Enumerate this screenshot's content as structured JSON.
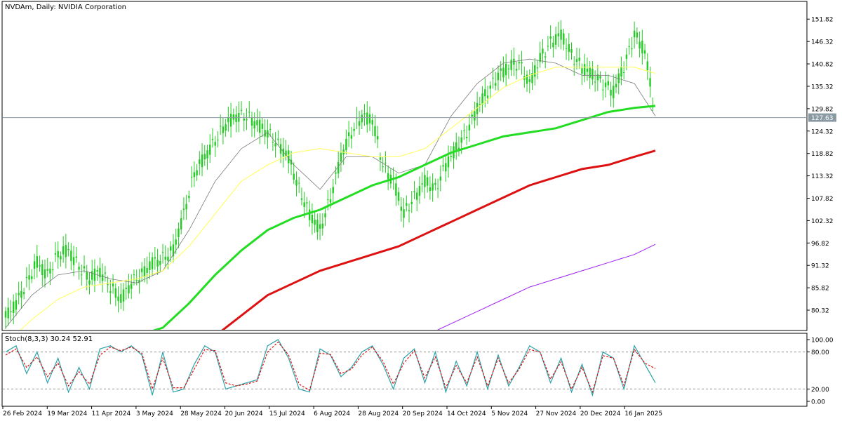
{
  "header": {
    "title": "NVDAm, Daily:  NVIDIA Corporation"
  },
  "colors": {
    "background": "#ffffff",
    "candle": "#22cc22",
    "ma_fast": "#7a7a7a",
    "ma_medium": "#ffff55",
    "ma_slow": "#22dd22",
    "ma_red": "#dd1111",
    "ma_purple": "#a020f0",
    "price_line": "#8a9aa3",
    "stoch_main": "#2aa2a8",
    "stoch_signal": "#dd1111",
    "price_badge_bg": "#8a9aa3",
    "price_badge_text": "#ffffff"
  },
  "chart_data": {
    "type": "line",
    "title": "NVDAm, Daily:  NVIDIA Corporation",
    "price_axis": {
      "min": 75.5,
      "max": 156.0,
      "ticks": [
        151.82,
        146.32,
        140.82,
        135.32,
        129.82,
        124.32,
        118.82,
        113.32,
        107.82,
        102.32,
        96.82,
        91.32,
        85.82,
        80.32
      ]
    },
    "current_price": 127.63,
    "current_price_label": "127.63",
    "dates": [
      "26 Feb 2024",
      "19 Mar 2024",
      "11 Apr 2024",
      "3 May 2024",
      "28 May 2024",
      "20 Jun 2024",
      "15 Jul 2024",
      "6 Aug 2024",
      "28 Aug 2024",
      "20 Sep 2024",
      "14 Oct 2024",
      "5 Nov 2024",
      "27 Nov 2024",
      "20 Dec 2024",
      "16 Jan 2025"
    ],
    "grid": false,
    "price_series": [
      {
        "name": "close",
        "x": [
          0,
          4,
          8,
          12,
          16,
          20,
          24,
          28,
          32,
          36,
          40,
          44,
          48,
          52,
          56,
          60,
          64,
          68,
          72,
          76,
          80,
          84,
          88,
          92,
          96,
          100,
          104,
          108,
          112,
          116,
          120,
          124,
          128,
          132,
          136,
          140,
          144,
          148,
          152,
          156,
          160,
          164,
          168,
          172,
          176,
          180,
          184,
          188,
          192,
          196,
          200,
          204,
          208,
          212,
          216,
          220,
          224,
          228,
          232,
          236,
          240,
          244,
          248
        ],
        "y": [
          78.5,
          82,
          87,
          92,
          89,
          94,
          95,
          91,
          88,
          90,
          86,
          83,
          87,
          89,
          92,
          93,
          95,
          104,
          114,
          118,
          122,
          126,
          128,
          128,
          126,
          124,
          121,
          118,
          110,
          104,
          100,
          108,
          118,
          124,
          128,
          127,
          116,
          112,
          104,
          108,
          112,
          110,
          116,
          120,
          124,
          130,
          134,
          138,
          140,
          141,
          136,
          142,
          146,
          148,
          143,
          140,
          138,
          136,
          134,
          140,
          148,
          144,
          127.63
        ]
      },
      {
        "name": "ma_fast",
        "x": [
          0,
          10,
          20,
          30,
          40,
          50,
          60,
          70,
          80,
          90,
          100,
          110,
          120,
          130,
          140,
          150,
          160,
          170,
          180,
          190,
          200,
          210,
          220,
          230,
          240,
          248
        ],
        "y": [
          76,
          84,
          89,
          90,
          88,
          87,
          90,
          100,
          112,
          120,
          124,
          116,
          110,
          118,
          118,
          114,
          116,
          128,
          136,
          141,
          142,
          141,
          138,
          138,
          136,
          128
        ]
      },
      {
        "name": "ma_medium",
        "x": [
          0,
          10,
          20,
          30,
          40,
          50,
          60,
          70,
          80,
          90,
          100,
          110,
          120,
          130,
          140,
          150,
          160,
          170,
          180,
          190,
          200,
          210,
          220,
          230,
          240,
          248
        ],
        "y": [
          72,
          78,
          83,
          86,
          87,
          88,
          90,
          96,
          104,
          112,
          116,
          119,
          120,
          119,
          118,
          118,
          120,
          125,
          130,
          135,
          138,
          140,
          140,
          140,
          140,
          138.5
        ]
      },
      {
        "name": "ma_slow",
        "x": [
          0,
          20,
          40,
          60,
          70,
          80,
          90,
          100,
          110,
          120,
          130,
          140,
          150,
          160,
          170,
          180,
          190,
          200,
          210,
          220,
          230,
          240,
          248
        ],
        "y": [
          60,
          66,
          72,
          76,
          82,
          89,
          95,
          100,
          103,
          105,
          108,
          111,
          113,
          116,
          119,
          121,
          123,
          124,
          125,
          127,
          129,
          130,
          130.5
        ]
      },
      {
        "name": "ma_red",
        "x": [
          0,
          40,
          60,
          80,
          90,
          100,
          110,
          120,
          130,
          140,
          150,
          160,
          170,
          180,
          190,
          200,
          210,
          220,
          230,
          240,
          248
        ],
        "y": [
          55,
          62,
          68,
          74,
          79,
          84,
          87,
          90,
          92,
          94,
          96,
          99,
          102,
          105,
          108,
          111,
          113,
          115,
          116,
          118,
          119.5
        ]
      },
      {
        "name": "ma_purple",
        "x": [
          0,
          80,
          150,
          160,
          170,
          180,
          190,
          200,
          210,
          220,
          230,
          240,
          248
        ],
        "y": [
          40,
          55,
          70,
          74,
          77,
          80,
          83,
          86,
          88,
          90,
          92,
          94,
          96.5
        ]
      }
    ],
    "stochastic": {
      "label": "Stoch(8,3,3) 30.24 52.91",
      "range": [
        0,
        100
      ],
      "ticks": [
        100.0,
        80.0,
        20.0,
        0.0
      ],
      "tick_labels": [
        "100.00",
        "80.00",
        "20.00",
        "0.00"
      ],
      "levels": [
        80,
        20
      ],
      "main": {
        "x": [
          0,
          4,
          8,
          12,
          16,
          20,
          24,
          28,
          32,
          36,
          40,
          44,
          48,
          52,
          56,
          60,
          64,
          68,
          72,
          76,
          80,
          84,
          88,
          92,
          96,
          100,
          104,
          108,
          112,
          116,
          120,
          124,
          128,
          132,
          136,
          140,
          144,
          148,
          152,
          156,
          160,
          164,
          168,
          172,
          176,
          180,
          184,
          188,
          192,
          196,
          200,
          204,
          208,
          212,
          216,
          220,
          224,
          228,
          232,
          236,
          240,
          244,
          248
        ],
        "y": [
          80,
          90,
          45,
          80,
          30,
          70,
          15,
          55,
          20,
          85,
          90,
          80,
          90,
          75,
          10,
          80,
          15,
          20,
          60,
          90,
          80,
          20,
          25,
          30,
          35,
          90,
          100,
          70,
          20,
          15,
          85,
          75,
          40,
          55,
          80,
          90,
          60,
          20,
          70,
          85,
          30,
          80,
          15,
          65,
          25,
          80,
          20,
          75,
          25,
          55,
          90,
          80,
          30,
          70,
          15,
          60,
          10,
          80,
          70,
          20,
          90,
          60,
          30
        ]
      },
      "signal": {
        "x": [
          0,
          4,
          8,
          12,
          16,
          20,
          24,
          28,
          32,
          36,
          40,
          44,
          48,
          52,
          56,
          60,
          64,
          68,
          72,
          76,
          80,
          84,
          88,
          92,
          96,
          100,
          104,
          108,
          112,
          116,
          120,
          124,
          128,
          132,
          136,
          140,
          144,
          148,
          152,
          156,
          160,
          164,
          168,
          172,
          176,
          180,
          184,
          188,
          192,
          196,
          200,
          204,
          208,
          212,
          216,
          220,
          224,
          228,
          232,
          236,
          240,
          244,
          248
        ],
        "y": [
          75,
          85,
          55,
          72,
          40,
          62,
          25,
          48,
          28,
          75,
          88,
          82,
          88,
          78,
          20,
          70,
          22,
          22,
          52,
          84,
          82,
          30,
          25,
          28,
          33,
          80,
          96,
          75,
          28,
          18,
          78,
          76,
          45,
          52,
          75,
          88,
          65,
          28,
          62,
          82,
          38,
          72,
          22,
          58,
          30,
          72,
          25,
          70,
          30,
          52,
          84,
          80,
          36,
          64,
          20,
          55,
          15,
          74,
          70,
          26,
          84,
          62,
          52.91
        ]
      }
    }
  }
}
